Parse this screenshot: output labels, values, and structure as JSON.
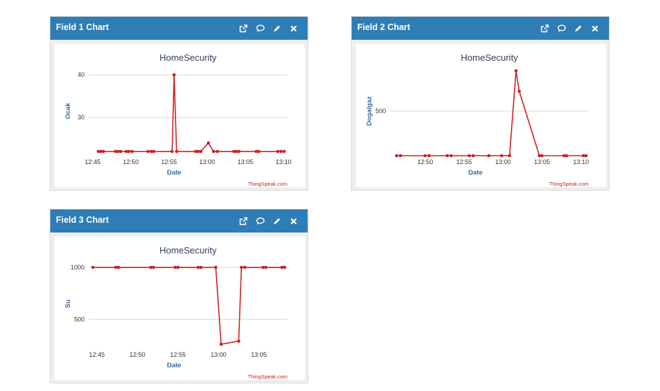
{
  "widgets": [
    {
      "title": "Field 1 Chart",
      "icons": [
        "external-link-icon",
        "comment-icon",
        "pencil-icon",
        "close-icon"
      ],
      "chart_data": {
        "type": "line",
        "title": "HomeSecurity",
        "xlabel": "Date",
        "ylabel": "Ocak",
        "credit": "ThingSpeak.com",
        "color": "#cc2222",
        "xlim": [
          "12:44:30",
          "13:10:30"
        ],
        "ylim": [
          21,
          42
        ],
        "x_ticks": [
          "12:45",
          "12:50",
          "12:55",
          "13:00",
          "13:05",
          "13:10"
        ],
        "y_ticks": [
          30,
          40
        ],
        "grid": true,
        "series": [
          {
            "x": [
              "12:45:45",
              "12:46:05",
              "12:46:25",
              "12:48:00",
              "12:48:20",
              "12:48:40",
              "12:49:25",
              "12:49:45",
              "12:50:10",
              "12:52:15",
              "12:52:40",
              "12:53:00",
              "12:55:25",
              "12:55:40",
              "12:56:00",
              "12:58:30",
              "12:58:50",
              "12:59:10",
              "13:00:10",
              "13:00:50",
              "13:01:20",
              "13:03:30",
              "13:03:50",
              "13:04:10",
              "13:06:25",
              "13:06:45",
              "13:09:15",
              "13:09:40",
              "13:10:05"
            ],
            "values": [
              22,
              22,
              22,
              22,
              22,
              22,
              22,
              22,
              22,
              22,
              22,
              22,
              22,
              40,
              22,
              22,
              22,
              22,
              24,
              22,
              22,
              22,
              22,
              22,
              22,
              22,
              22,
              22,
              22
            ]
          }
        ]
      }
    },
    {
      "title": "Field 2 Chart",
      "icons": [
        "external-link-icon",
        "comment-icon",
        "pencil-icon",
        "close-icon"
      ],
      "chart_data": {
        "type": "line",
        "title": "HomeSecurity",
        "xlabel": "Date",
        "ylabel": "Dogalgaz",
        "credit": "ThingSpeak.com",
        "color": "#cc2222",
        "xlim": [
          "12:45:30",
          "13:11:00"
        ],
        "ylim": [
          0,
          1000
        ],
        "x_ticks": [
          "12:50",
          "12:55",
          "13:00",
          "13:05",
          "13:10"
        ],
        "y_ticks": [
          500
        ],
        "grid": true,
        "series": [
          {
            "x": [
              "12:46:20",
              "12:46:50",
              "12:50:00",
              "12:50:30",
              "12:52:50",
              "12:53:20",
              "12:55:40",
              "12:56:10",
              "12:58:10",
              "12:59:50",
              "13:00:50",
              "13:01:40",
              "13:02:05",
              "13:04:40",
              "13:05:00",
              "13:07:50",
              "13:08:10",
              "13:10:20",
              "13:10:40"
            ],
            "values": [
              0,
              0,
              0,
              0,
              0,
              0,
              0,
              0,
              0,
              0,
              0,
              950,
              720,
              0,
              0,
              0,
              0,
              0,
              0
            ]
          }
        ]
      }
    },
    {
      "title": "Field 3 Chart",
      "icons": [
        "external-link-icon",
        "comment-icon",
        "pencil-icon",
        "close-icon"
      ],
      "chart_data": {
        "type": "line",
        "title": "HomeSecurity",
        "xlabel": "Date",
        "ylabel": "Su",
        "credit": "ThingSpeak.com",
        "color": "#cc2222",
        "xlim": [
          "12:44:00",
          "13:08:30"
        ],
        "ylim": [
          220,
          1080
        ],
        "x_ticks": [
          "12:45",
          "12:50",
          "12:55",
          "13:00",
          "13:05"
        ],
        "y_ticks": [
          500,
          1000
        ],
        "grid": true,
        "series": [
          {
            "x": [
              "12:44:30",
              "12:47:20",
              "12:47:40",
              "12:51:40",
              "12:52:00",
              "12:54:40",
              "12:55:00",
              "12:57:30",
              "12:57:50",
              "12:59:40",
              "13:00:20",
              "13:02:30",
              "13:02:50",
              "13:03:15",
              "13:05:30",
              "13:05:50",
              "13:07:50",
              "13:08:10"
            ],
            "values": [
              1000,
              1000,
              1000,
              1000,
              1000,
              1000,
              1000,
              1000,
              1000,
              1000,
              260,
              290,
              1000,
              1000,
              1000,
              1000,
              1000,
              1000
            ]
          }
        ]
      }
    }
  ]
}
